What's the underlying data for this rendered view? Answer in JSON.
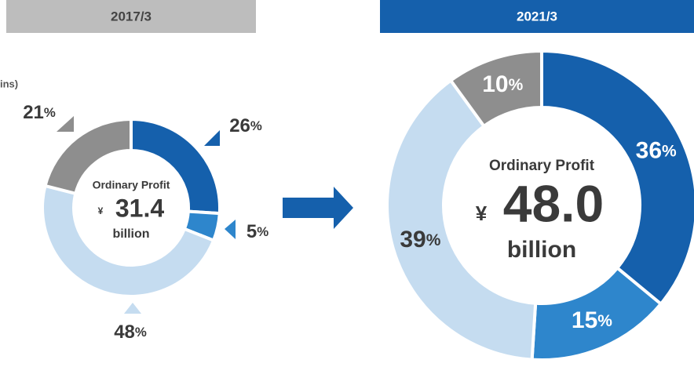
{
  "chart_data": [
    {
      "type": "pie",
      "title": "2017/3",
      "header_color": "#bdbdbd",
      "header_text_color": "#444444",
      "note": "ins)",
      "values": [
        26,
        5,
        48,
        21
      ],
      "value_labels": [
        "26%",
        "5%",
        "48%",
        "21%"
      ],
      "colors": [
        "#1560ac",
        "#2e86cc",
        "#c5dcf0",
        "#8e8e8e"
      ],
      "center_label": "Ordinary Profit",
      "currency": "¥",
      "total": "31.4",
      "unit": "billion"
    },
    {
      "type": "pie",
      "title": "2021/3",
      "header_color": "#1560ac",
      "header_text_color": "#ffffff",
      "values": [
        36,
        15,
        39,
        10
      ],
      "value_labels": [
        "36%",
        "15%",
        "39%",
        "10%"
      ],
      "colors": [
        "#1560ac",
        "#2e86cc",
        "#c5dcf0",
        "#8e8e8e"
      ],
      "center_label": "Ordinary Profit",
      "currency": "¥",
      "total": "48.0",
      "unit": "billion"
    }
  ]
}
